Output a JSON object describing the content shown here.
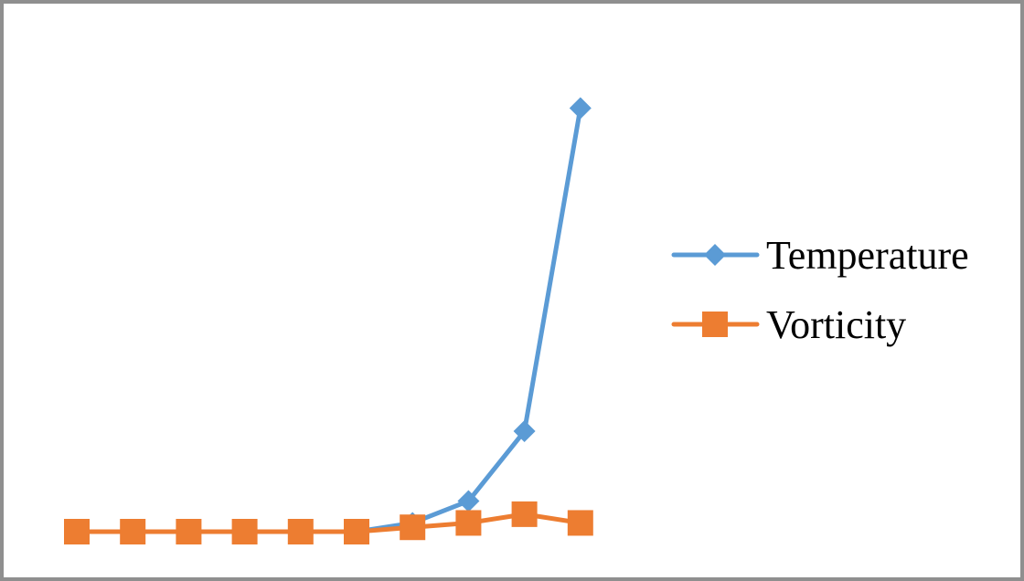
{
  "chart_data": {
    "type": "line",
    "x": [
      1,
      2,
      3,
      4,
      5,
      6,
      7,
      8,
      9,
      10
    ],
    "series": [
      {
        "name": "Temperature",
        "color": "#5b9bd5",
        "marker": "diamond",
        "values": [
          0.0,
          0.0,
          0.0,
          0.0,
          0.0,
          0.0,
          0.02,
          0.07,
          0.23,
          0.97
        ]
      },
      {
        "name": "Vorticity",
        "color": "#ed7d31",
        "marker": "square",
        "values": [
          0.0,
          0.0,
          0.0,
          0.0,
          0.0,
          0.0,
          0.01,
          0.02,
          0.04,
          0.02
        ]
      }
    ],
    "ylim": [
      0,
      1
    ],
    "grid": false,
    "axes_visible": false,
    "legend_position": "right"
  }
}
